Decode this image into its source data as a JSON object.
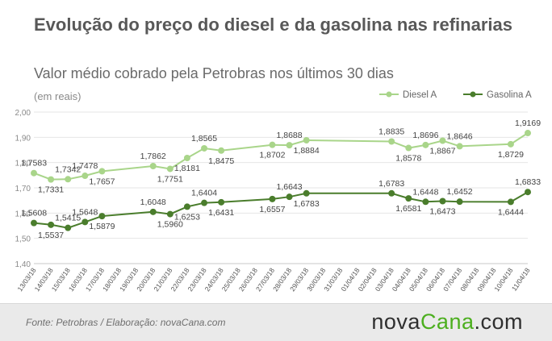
{
  "header": {
    "title": "Evolução do preço do diesel e da gasolina nas refinarias",
    "subtitle": "Valor médio cobrado pela Petrobras nos últimos 30 dias",
    "unit_note": "(em reais)"
  },
  "footer": {
    "source": "Fonte:  Petrobras  / Elaboração:  novaCana.com",
    "brand_part1": "nova",
    "brand_part2": "Cana",
    "brand_part3": ".com"
  },
  "chart_data": {
    "type": "line",
    "categories": [
      "13/03/18",
      "14/03/18",
      "15/03/18",
      "16/03/18",
      "17/03/18",
      "18/03/18",
      "19/03/18",
      "20/03/18",
      "21/03/18",
      "22/03/18",
      "23/03/18",
      "24/03/18",
      "25/03/18",
      "26/03/18",
      "27/03/18",
      "28/03/18",
      "29/03/18",
      "30/03/18",
      "31/03/18",
      "01/04/18",
      "02/04/18",
      "03/04/18",
      "04/04/18",
      "05/04/18",
      "06/04/18",
      "07/04/18",
      "08/04/18",
      "09/04/18",
      "10/04/18",
      "11/04/18"
    ],
    "ylim": [
      1.4,
      2.0
    ],
    "yticks": [
      "1,40",
      "1,50",
      "1,60",
      "1,70",
      "1,80",
      "1,90",
      "2,00"
    ],
    "ytick_values": [
      1.4,
      1.5,
      1.6,
      1.7,
      1.8,
      1.9,
      2.0
    ],
    "grid": true,
    "legend_position": "top-right",
    "series": [
      {
        "name": "Diesel A",
        "color": "#a9d58a",
        "values": [
          1.7583,
          1.7331,
          1.7342,
          1.7478,
          1.7657,
          null,
          null,
          1.7862,
          1.7751,
          1.8181,
          1.8565,
          1.8475,
          null,
          null,
          1.8702,
          1.8688,
          1.8884,
          null,
          null,
          null,
          null,
          1.8835,
          1.8578,
          1.8696,
          1.8867,
          1.8646,
          null,
          null,
          1.8729,
          1.9169
        ],
        "labels": [
          "1,7583",
          "1,7331",
          "1,7342",
          "1,7478",
          "1,7657",
          "",
          "",
          "1,7862",
          "1,7751",
          "1,8181",
          "1,8565",
          "1,8475",
          "",
          "",
          "1,8702",
          "1,8688",
          "1,8884",
          "",
          "",
          "",
          "",
          "1,8835",
          "1,8578",
          "1,8696",
          "1,8867",
          "1,8646",
          "",
          "",
          "1,8729",
          "1,9169"
        ]
      },
      {
        "name": "Gasolina A",
        "color": "#4a7d2c",
        "values": [
          1.5608,
          1.5537,
          1.5415,
          1.5648,
          1.5879,
          null,
          null,
          1.6048,
          1.596,
          1.6253,
          1.6404,
          1.6431,
          null,
          null,
          1.6557,
          1.6643,
          1.6783,
          null,
          null,
          null,
          null,
          1.6783,
          1.6581,
          1.6448,
          1.6473,
          1.6452,
          null,
          null,
          1.6444,
          1.6833
        ],
        "labels": [
          "1,5608",
          "1,5537",
          "1,5415",
          "1,5648",
          "1,5879",
          "",
          "",
          "1,6048",
          "1,5960",
          "1,6253",
          "1,6404",
          "1,6431",
          "",
          "",
          "1,6557",
          "1,6643",
          "1,6783",
          "",
          "",
          "",
          "",
          "1,6783",
          "1,6581",
          "1,6448",
          "1,6473",
          "1,6452",
          "",
          "",
          "1,6444",
          "1,6833"
        ]
      }
    ]
  }
}
